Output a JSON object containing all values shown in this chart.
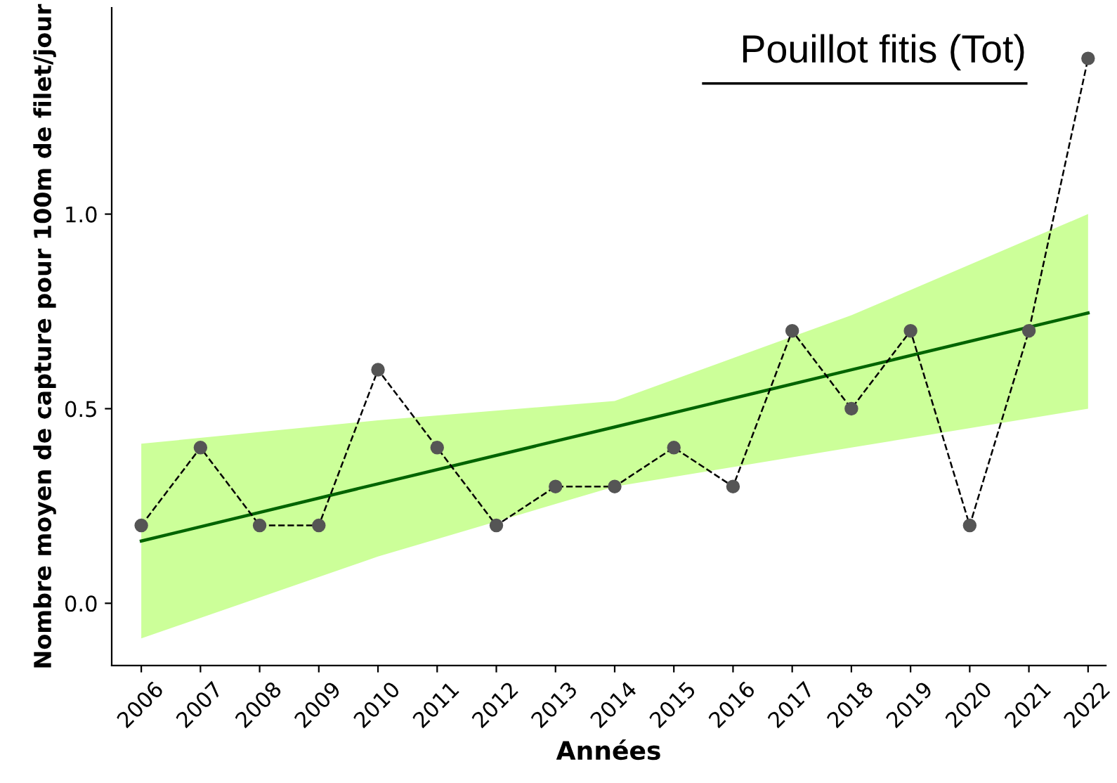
{
  "chart_data": {
    "type": "line",
    "title": "Pouillot fitis (Tot)",
    "xlabel": "Années",
    "ylabel": "Nombre moyen de capture pour 100m de filet/jour",
    "xlim": [
      2005.5,
      2022.3
    ],
    "xticks": [
      2006,
      2007,
      2008,
      2009,
      2010,
      2011,
      2012,
      2013,
      2014,
      2015,
      2016,
      2017,
      2018,
      2019,
      2020,
      2021,
      2022
    ],
    "ylim": [
      -0.16,
      1.53
    ],
    "yticks": [
      {
        "value": 0,
        "label": "0.0"
      },
      0.5,
      {
        "value": 1,
        "label": "1.0"
      }
    ],
    "grid": false,
    "legend": false,
    "series": [
      {
        "type": "line",
        "color": "#006400",
        "x": [
          2006,
          2010,
          2014,
          2018,
          2022
        ],
        "lower": [
          -0.09,
          0.12,
          0.3,
          0.4,
          0.5
        ],
        "upper": [
          0.41,
          0.47,
          0.52,
          0.74,
          1.0
        ],
        "values": [
          0.16,
          0.307,
          0.453,
          0.6,
          0.746
        ],
        "line_style": "solid",
        "marker": "none"
      },
      {
        "type": "line",
        "color": "#000000",
        "x": [
          2006,
          2007,
          2008,
          2009,
          2010,
          2011,
          2012,
          2013,
          2014,
          2015,
          2016,
          2017,
          2018,
          2019,
          2020,
          2021,
          2022
        ],
        "values": [
          0.2,
          0.4,
          0.2,
          0.2,
          0.6,
          0.4,
          0.2,
          0.3,
          0.3,
          0.4,
          0.3,
          0.7,
          0.5,
          0.7,
          0.2,
          0.7,
          1.4
        ],
        "line_style": "dashed",
        "marker": "circle"
      }
    ]
  }
}
